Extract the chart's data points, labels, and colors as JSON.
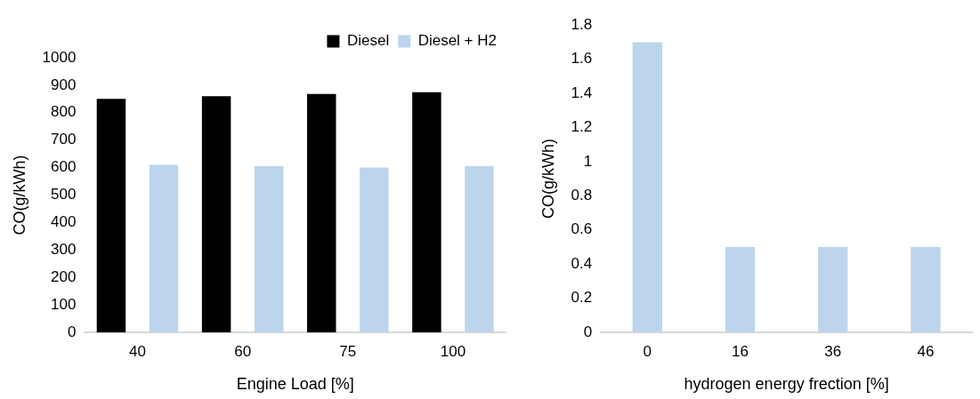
{
  "chart_data": [
    {
      "type": "bar",
      "xlabel": "Engine Load [%]",
      "ylabel": "CO(g/kWh)",
      "categories": [
        "40",
        "60",
        "75",
        "100"
      ],
      "series": [
        {
          "name": "Diesel",
          "color": "#000000",
          "values": [
            850,
            860,
            868,
            875
          ]
        },
        {
          "name": "Diesel + H2",
          "color": "#bcd5ec",
          "values": [
            610,
            605,
            600,
            605
          ]
        }
      ],
      "ylim": [
        0,
        1000
      ],
      "yticks": [
        0,
        100,
        200,
        300,
        400,
        500,
        600,
        700,
        800,
        900,
        1000
      ],
      "legend": "top right"
    },
    {
      "type": "bar",
      "xlabel": "hydrogen energy frection [%]",
      "ylabel": "CO(g/kWh)",
      "categories": [
        "0",
        "16",
        "36",
        "46"
      ],
      "series": [
        {
          "color": "#bcd5ec",
          "values": [
            1.7,
            0.5,
            0.5,
            0.5
          ]
        }
      ],
      "ylim": [
        0,
        1.8
      ],
      "yticks": [
        0,
        0.2,
        0.4,
        {
          "value": 0.6,
          "label": "0.6"
        },
        0.8,
        1,
        1.2,
        1.4,
        1.6,
        1.8
      ]
    }
  ]
}
